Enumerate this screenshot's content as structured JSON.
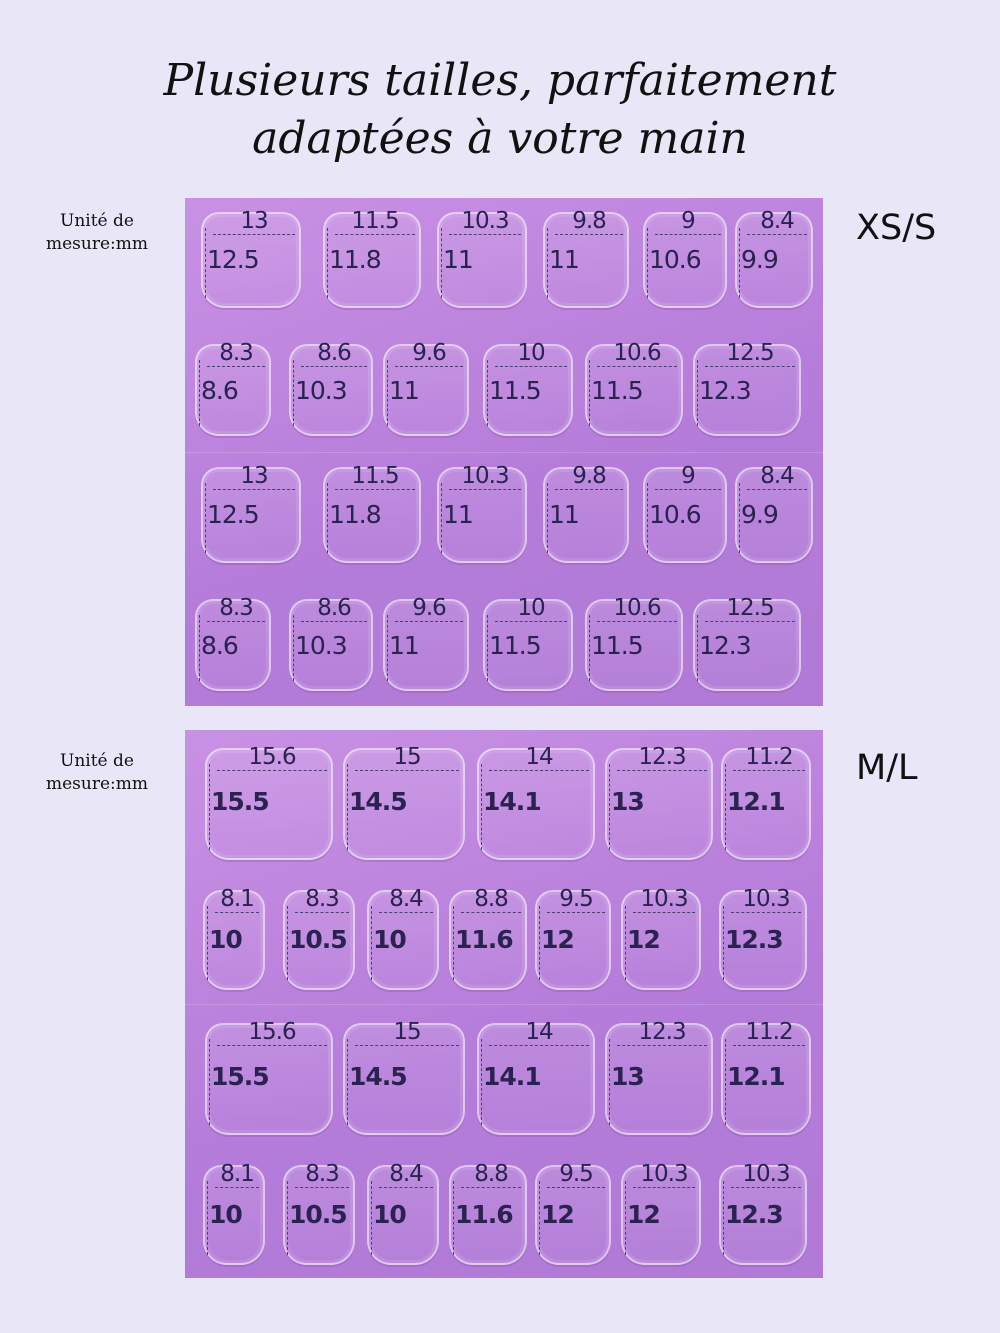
{
  "title": {
    "line1": "Plusieurs tailles, parfaitement",
    "line2": "adaptées à votre main"
  },
  "unit_label": {
    "line1": "Unité de",
    "line2": "mesure:mm"
  },
  "sizes": [
    {
      "label": "XS/S",
      "row1": [
        [
          "13",
          "12.5"
        ],
        [
          "11.5",
          "11.8"
        ],
        [
          "10.3",
          "11"
        ],
        [
          "9.8",
          "11"
        ],
        [
          "9",
          "10.6"
        ],
        [
          "8.4",
          "9.9"
        ]
      ],
      "row2": [
        [
          "8.3",
          "8.6"
        ],
        [
          "8.6",
          "10.3"
        ],
        [
          "9.6",
          "11"
        ],
        [
          "10",
          "11.5"
        ],
        [
          "10.6",
          "11.5"
        ],
        [
          "12.5",
          "12.3"
        ]
      ]
    },
    {
      "label": "M/L",
      "row1": [
        [
          "15.6",
          "15.5"
        ],
        [
          "15",
          "14.5"
        ],
        [
          "14",
          "14.1"
        ],
        [
          "12.3",
          "13"
        ],
        [
          "11.2",
          "12.1"
        ]
      ],
      "row2": [
        [
          "8.1",
          "10"
        ],
        [
          "8.3",
          "10.5"
        ],
        [
          "8.4",
          "10"
        ],
        [
          "8.8",
          "11.6"
        ],
        [
          "9.5",
          "12"
        ],
        [
          "10.3",
          "12"
        ],
        [
          "10.3",
          "12.3"
        ]
      ]
    }
  ]
}
